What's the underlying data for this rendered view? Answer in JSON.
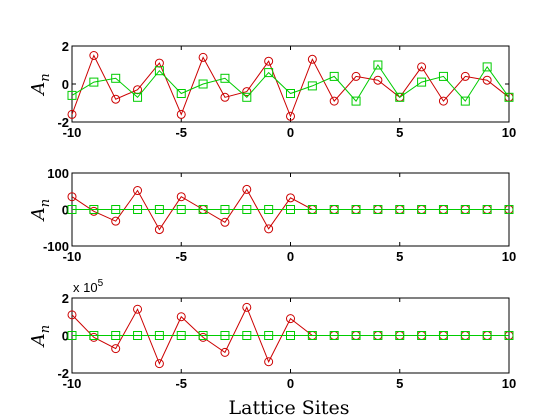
{
  "chart_data": [
    {
      "type": "line",
      "ylabel": "A",
      "ylabel_sub": "n",
      "xlim": [
        -10,
        10
      ],
      "ylim": [
        -2,
        2
      ],
      "xticks": [
        -10,
        -5,
        0,
        5,
        10
      ],
      "xtick_labels": [
        "-10",
        "-5",
        "0",
        "5",
        "10"
      ],
      "yticks": [
        -2,
        0,
        2
      ],
      "ytick_labels": [
        "-2",
        "0",
        "2"
      ],
      "x": [
        -10,
        -9,
        -8,
        -7,
        -6,
        -5,
        -4,
        -3,
        -2,
        -1,
        0,
        1,
        2,
        3,
        4,
        5,
        6,
        7,
        8,
        9,
        10
      ],
      "series": [
        {
          "color": "#cc0000",
          "marker": "circle",
          "values": [
            -1.6,
            1.5,
            -0.8,
            -0.3,
            1.1,
            -1.6,
            1.4,
            -0.7,
            -0.4,
            1.2,
            -1.7,
            1.3,
            -0.9,
            0.4,
            0.2,
            -0.7,
            0.9,
            -0.9,
            0.4,
            0.2,
            -0.7
          ]
        },
        {
          "color": "#00cc00",
          "marker": "square",
          "values": [
            -0.6,
            0.1,
            0.3,
            -0.7,
            0.7,
            -0.5,
            0.0,
            0.3,
            -0.7,
            0.6,
            -0.5,
            -0.1,
            0.4,
            -0.9,
            1.0,
            -0.7,
            0.1,
            0.4,
            -0.9,
            0.9,
            -0.7
          ]
        }
      ]
    },
    {
      "type": "line",
      "ylabel": "A",
      "ylabel_sub": "n",
      "xlim": [
        -10,
        10
      ],
      "ylim": [
        -100,
        100
      ],
      "xticks": [
        -10,
        -5,
        0,
        5,
        10
      ],
      "xtick_labels": [
        "-10",
        "-5",
        "0",
        "5",
        "10"
      ],
      "yticks": [
        -100,
        0,
        100
      ],
      "ytick_labels": [
        "-100",
        "0",
        "100"
      ],
      "x": [
        -10,
        -9,
        -8,
        -7,
        -6,
        -5,
        -4,
        -3,
        -2,
        -1,
        0,
        1,
        2,
        3,
        4,
        5,
        6,
        7,
        8,
        9,
        10
      ],
      "series": [
        {
          "color": "#cc0000",
          "marker": "circle",
          "values": [
            35,
            -5,
            -32,
            52,
            -55,
            35,
            0,
            -35,
            55,
            -53,
            32,
            0,
            0,
            0,
            0,
            0,
            0,
            0,
            0,
            0,
            0
          ]
        },
        {
          "color": "#00cc00",
          "marker": "square",
          "values": [
            0,
            0,
            0,
            0,
            0,
            0,
            0,
            0,
            0,
            0,
            0,
            0,
            0,
            0,
            0,
            0,
            0,
            0,
            0,
            0,
            0
          ]
        }
      ]
    },
    {
      "type": "line",
      "ylabel": "A",
      "ylabel_sub": "n",
      "multiplier_base": "x 10",
      "multiplier_exp": "5",
      "xlim": [
        -10,
        10
      ],
      "ylim": [
        -2,
        2
      ],
      "xticks": [
        -10,
        -5,
        0,
        5,
        10
      ],
      "xtick_labels": [
        "-10",
        "-5",
        "0",
        "5",
        "10"
      ],
      "yticks": [
        -2,
        0,
        2
      ],
      "ytick_labels": [
        "-2",
        "0",
        "2"
      ],
      "x": [
        -10,
        -9,
        -8,
        -7,
        -6,
        -5,
        -4,
        -3,
        -2,
        -1,
        0,
        1,
        2,
        3,
        4,
        5,
        6,
        7,
        8,
        9,
        10
      ],
      "series": [
        {
          "color": "#cc0000",
          "marker": "circle",
          "values": [
            1.1,
            -0.1,
            -0.7,
            1.4,
            -1.5,
            1.0,
            -0.1,
            -0.9,
            1.5,
            -1.4,
            0.9,
            0,
            0,
            0,
            0,
            0,
            0,
            0,
            0,
            0,
            0
          ]
        },
        {
          "color": "#00cc00",
          "marker": "square",
          "values": [
            0,
            0,
            0,
            0,
            0,
            0,
            0,
            0,
            0,
            0,
            0,
            0,
            0,
            0,
            0,
            0,
            0,
            0,
            0,
            0,
            0
          ]
        }
      ]
    }
  ],
  "xlabel": "Lattice Sites"
}
